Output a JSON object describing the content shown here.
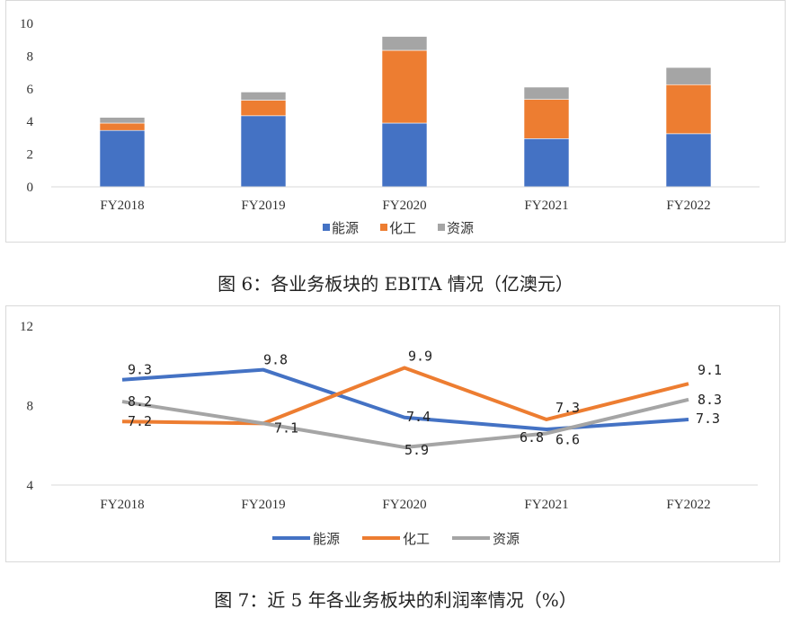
{
  "chart_data": [
    {
      "type": "bar",
      "stacked": true,
      "title": "图 6：各业务板块的 EBITA 情况（亿澳元）",
      "categories": [
        "FY2018",
        "FY2019",
        "FY2020",
        "FY2021",
        "FY2022"
      ],
      "series": [
        {
          "name": "能源",
          "color": "#4472C4",
          "values": [
            3.45,
            4.35,
            3.9,
            2.95,
            3.25
          ]
        },
        {
          "name": "化工",
          "color": "#ED7D31",
          "values": [
            0.45,
            0.95,
            4.45,
            2.4,
            3.0
          ]
        },
        {
          "name": "资源",
          "color": "#A5A5A5",
          "values": [
            0.35,
            0.5,
            0.85,
            0.75,
            1.05
          ]
        }
      ],
      "ylim": [
        0,
        10
      ],
      "yticks": [
        0,
        2,
        4,
        6,
        8,
        10
      ],
      "grid": false,
      "legend": "bottom"
    },
    {
      "type": "line",
      "title": "图 7：近 5 年各业务板块的利润率情况（%）",
      "categories": [
        "FY2018",
        "FY2019",
        "FY2020",
        "FY2021",
        "FY2022"
      ],
      "series": [
        {
          "name": "能源",
          "color": "#4472C4",
          "values": [
            9.3,
            9.8,
            7.4,
            6.8,
            7.3
          ],
          "labels": [
            "9.3",
            "9.8",
            "7.4",
            "6.8",
            "7.3"
          ]
        },
        {
          "name": "化工",
          "color": "#ED7D31",
          "values": [
            7.2,
            7.1,
            9.9,
            7.3,
            9.1
          ],
          "labels": [
            "7.2",
            "7.1",
            "9.9",
            "7.3",
            "9.1"
          ]
        },
        {
          "name": "资源",
          "color": "#A5A5A5",
          "values": [
            8.2,
            7.1,
            5.9,
            6.6,
            8.3
          ],
          "labels": [
            "8.2",
            "",
            "5.9",
            "6.6",
            "8.3"
          ]
        }
      ],
      "ylim": [
        4,
        12
      ],
      "yticks": [
        4,
        8,
        12
      ],
      "grid": false,
      "legend": "bottom"
    }
  ]
}
